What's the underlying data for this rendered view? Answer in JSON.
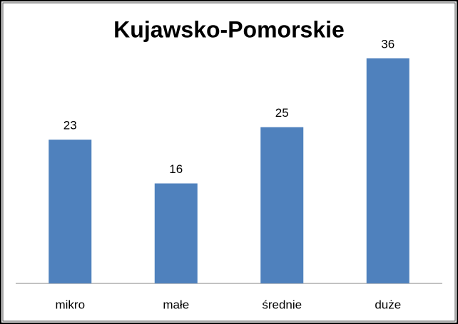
{
  "chart_data": {
    "type": "bar",
    "title": "Kujawsko-Pomorskie",
    "categories": [
      "mikro",
      "małe",
      "średnie",
      "duże"
    ],
    "values": [
      23,
      16,
      25,
      36
    ],
    "color": "#4f81bd"
  }
}
